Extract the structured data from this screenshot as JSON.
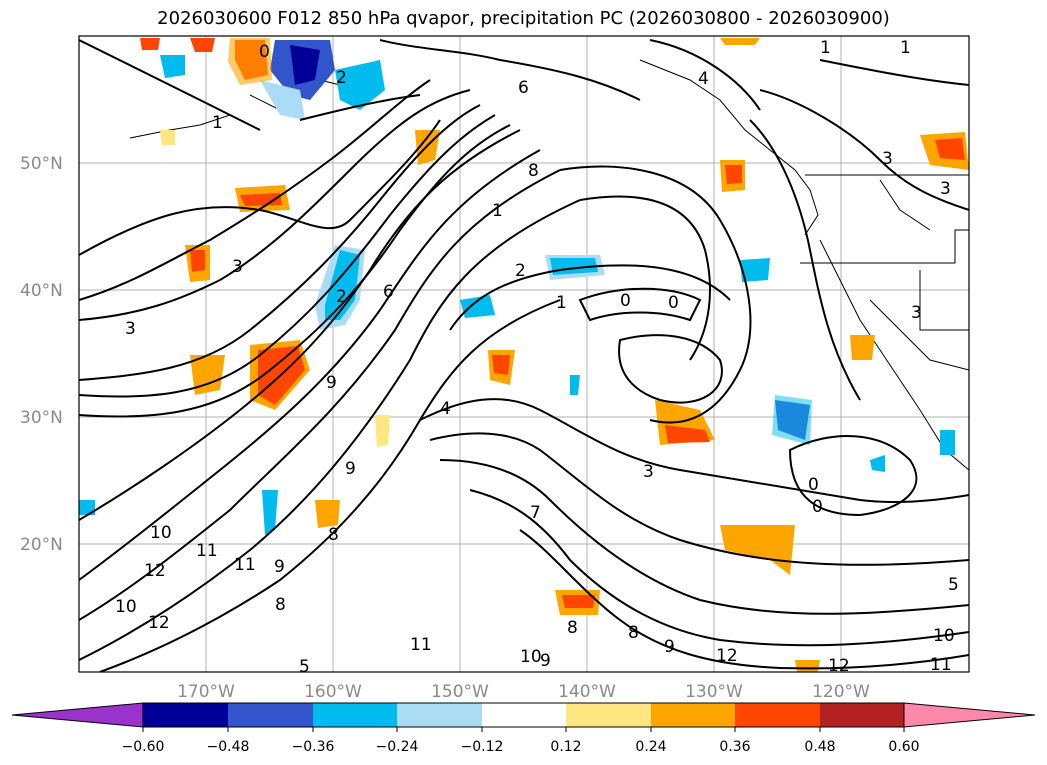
{
  "title": "2026030600 F012 850 hPa qvapor, precipitation PC (2026030800 - 2026030900)",
  "map": {
    "lat_labels": [
      "50°N",
      "40°N",
      "30°N",
      "20°N"
    ],
    "lon_labels": [
      "170°W",
      "160°W",
      "150°W",
      "140°W",
      "130°W",
      "120°W"
    ],
    "grid": true
  },
  "contour_labels": [
    "0",
    "1",
    "2",
    "6",
    "1",
    "4",
    "8",
    "1",
    "3",
    "3",
    "2",
    "6",
    "1",
    "0",
    "0",
    "2",
    "3",
    "9",
    "9",
    "5",
    "4",
    "3",
    "7",
    "0",
    "0",
    "10",
    "11",
    "12",
    "11",
    "9",
    "8",
    "10",
    "12",
    "8",
    "8",
    "9",
    "11",
    "10",
    "9",
    "12",
    "12",
    "10",
    "11",
    "5",
    "1",
    "3",
    "3",
    "8"
  ],
  "colorbar": {
    "colors": [
      "#9933cc",
      "#000099",
      "#3355cc",
      "#00bbee",
      "#aaddf5",
      "#ffffff",
      "#ffe680",
      "#ffa500",
      "#ff4500",
      "#b22222",
      "#ff88aa"
    ],
    "tick_labels": [
      "−0.60",
      "−0.48",
      "−0.36",
      "−0.24",
      "−0.12",
      "0.12",
      "0.24",
      "0.36",
      "0.48",
      "0.60"
    ]
  }
}
